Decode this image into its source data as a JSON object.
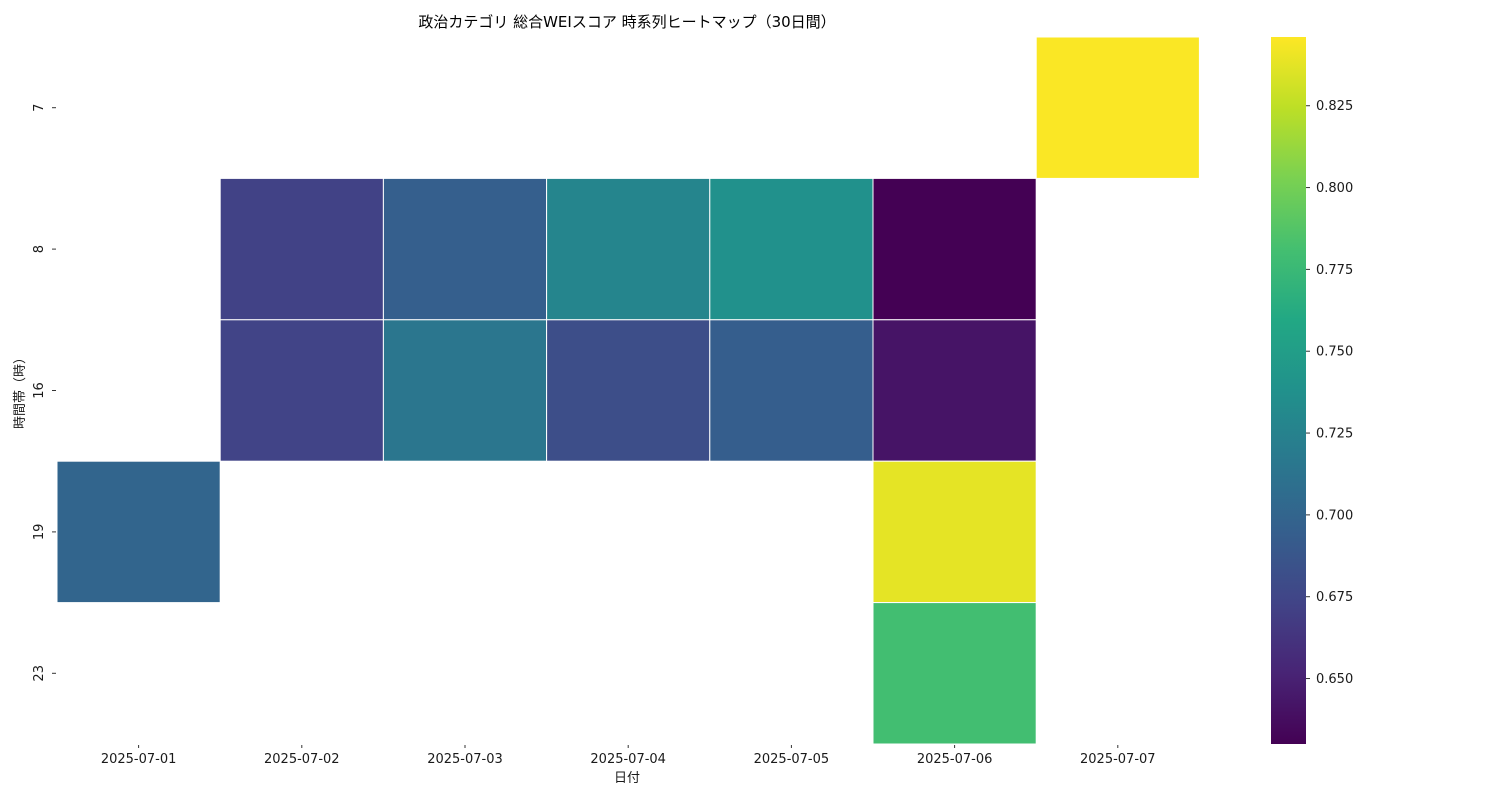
{
  "chart_data": {
    "type": "heatmap",
    "title": "政治カテゴリ 総合WEIスコア 時系列ヒートマップ（30日間）",
    "xlabel": "日付",
    "ylabel": "時間帯（時）",
    "x_categories": [
      "2025-07-01",
      "2025-07-02",
      "2025-07-03",
      "2025-07-04",
      "2025-07-05",
      "2025-07-06",
      "2025-07-07"
    ],
    "y_categories": [
      "7",
      "8",
      "16",
      "19",
      "23"
    ],
    "values": [
      [
        null,
        null,
        null,
        null,
        null,
        null,
        0.845
      ],
      [
        null,
        0.672,
        0.695,
        0.728,
        0.738,
        0.63,
        null
      ],
      [
        null,
        0.673,
        0.715,
        0.681,
        0.694,
        0.642,
        null
      ],
      [
        0.7,
        null,
        null,
        null,
        null,
        0.838,
        null
      ],
      [
        null,
        null,
        null,
        null,
        null,
        0.78,
        null
      ]
    ],
    "colormap": "viridis",
    "colorbar": {
      "vmin": 0.63,
      "vmax": 0.846,
      "ticks": [
        "0.650",
        "0.675",
        "0.700",
        "0.725",
        "0.750",
        "0.775",
        "0.800",
        "0.825"
      ]
    },
    "missing_color": "#ffffff",
    "cell_border_color": "#ffffff"
  }
}
